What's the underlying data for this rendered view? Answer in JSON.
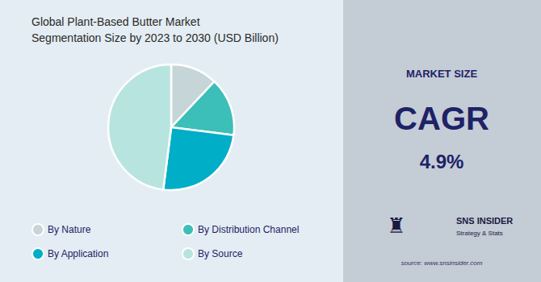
{
  "chart_data": {
    "type": "pie",
    "title": "Global Plant-Based Butter Market\nSegmentation Size by 2023 to 2030 (USD Billion)",
    "categories": [
      "By Nature",
      "By Distribution Channel",
      "By Application",
      "By Source"
    ],
    "values": [
      12,
      15,
      25,
      48
    ],
    "colors": [
      "#c5d5d8",
      "#3bbfb8",
      "#00aec7",
      "#b8e4e0"
    ],
    "legend": "bottom",
    "annotations": [
      "MARKET SIZE",
      "CAGR",
      "4.9%",
      "♜",
      "SNS INSIDER",
      "Strategy & Stats",
      "source: www.snsinsider.com"
    ]
  }
}
